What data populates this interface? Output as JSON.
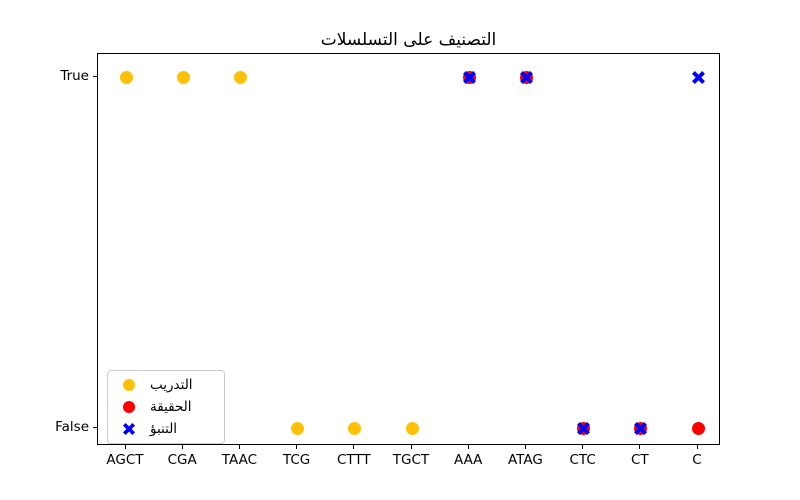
{
  "chart_data": {
    "type": "scatter",
    "title": "التصنيف على التسلسلات",
    "categories": [
      "AGCT",
      "CGA",
      "TAAC",
      "TCG",
      "CTTT",
      "TGCT",
      "AAA",
      "ATAG",
      "CTC",
      "CT",
      "C"
    ],
    "ytick_labels": [
      "True",
      "False"
    ],
    "xlabel": "",
    "ylabel": "",
    "grid": false,
    "legend_position": "lower-left",
    "colors": {
      "training": "#FFC107",
      "truth": "#FF0000",
      "prediction": "#0000FF",
      "axis": "#000000",
      "legend_border": "#cccccc"
    },
    "series": [
      {
        "key": "training",
        "name": "التدريب",
        "marker": "circle",
        "color": "#FFC107",
        "points": [
          {
            "x": "AGCT",
            "y": "True"
          },
          {
            "x": "CGA",
            "y": "True"
          },
          {
            "x": "TAAC",
            "y": "True"
          },
          {
            "x": "TCG",
            "y": "False"
          },
          {
            "x": "CTTT",
            "y": "False"
          },
          {
            "x": "TGCT",
            "y": "False"
          }
        ]
      },
      {
        "key": "truth",
        "name": "الحقيقة",
        "marker": "circle",
        "color": "#FF0000",
        "points": [
          {
            "x": "AAA",
            "y": "True"
          },
          {
            "x": "ATAG",
            "y": "True"
          },
          {
            "x": "CTC",
            "y": "False"
          },
          {
            "x": "CT",
            "y": "False"
          },
          {
            "x": "C",
            "y": "False"
          }
        ]
      },
      {
        "key": "prediction",
        "name": "التنبؤ",
        "marker": "x",
        "color": "#0000FF",
        "points": [
          {
            "x": "AAA",
            "y": "True"
          },
          {
            "x": "ATAG",
            "y": "True"
          },
          {
            "x": "CTC",
            "y": "False"
          },
          {
            "x": "CT",
            "y": "False"
          },
          {
            "x": "C",
            "y": "True"
          }
        ]
      }
    ]
  }
}
